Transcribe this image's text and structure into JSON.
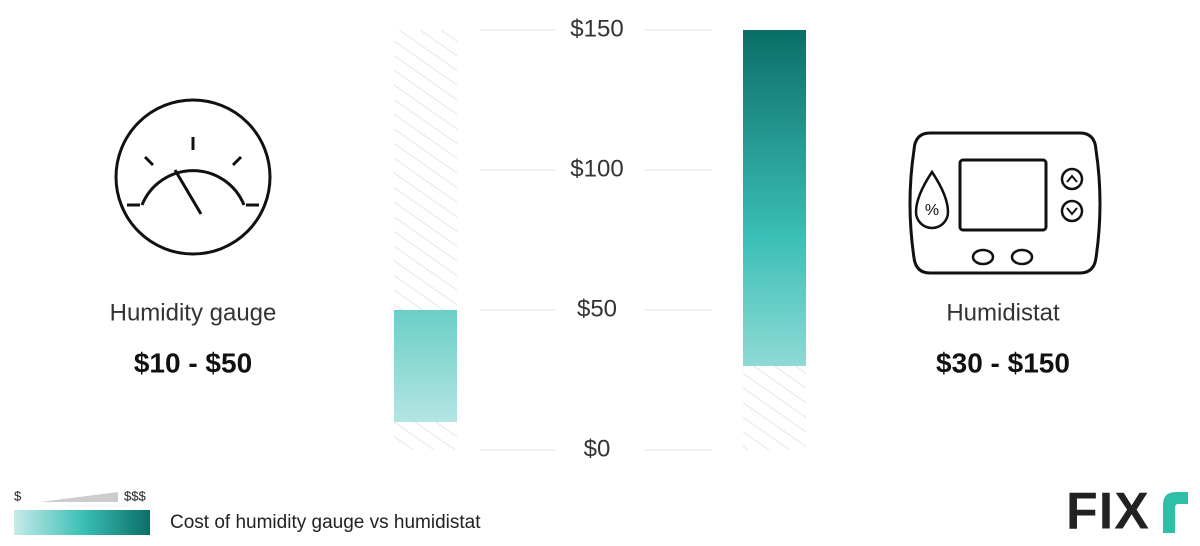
{
  "chart_data": {
    "type": "range_bar",
    "categories": [
      "Humidity gauge",
      "Humidistat"
    ],
    "low": [
      10,
      30
    ],
    "high": [
      50,
      150
    ],
    "value_labels": [
      "$10 - $50",
      "$30 - $150"
    ],
    "ylim": [
      0,
      150
    ],
    "yticks": [
      {
        "value": 0,
        "label": "$0"
      },
      {
        "value": 50,
        "label": "$50"
      },
      {
        "value": 100,
        "label": "$100"
      },
      {
        "value": 150,
        "label": "$150"
      }
    ],
    "grid": true,
    "gradient": [
      "#0b6e68",
      "#3cc0b7",
      "#c6ebe9"
    ],
    "legend": {
      "low": "$",
      "high": "$$$",
      "label": "Cost of humidity gauge vs humidistat"
    },
    "logo": "FIX"
  }
}
